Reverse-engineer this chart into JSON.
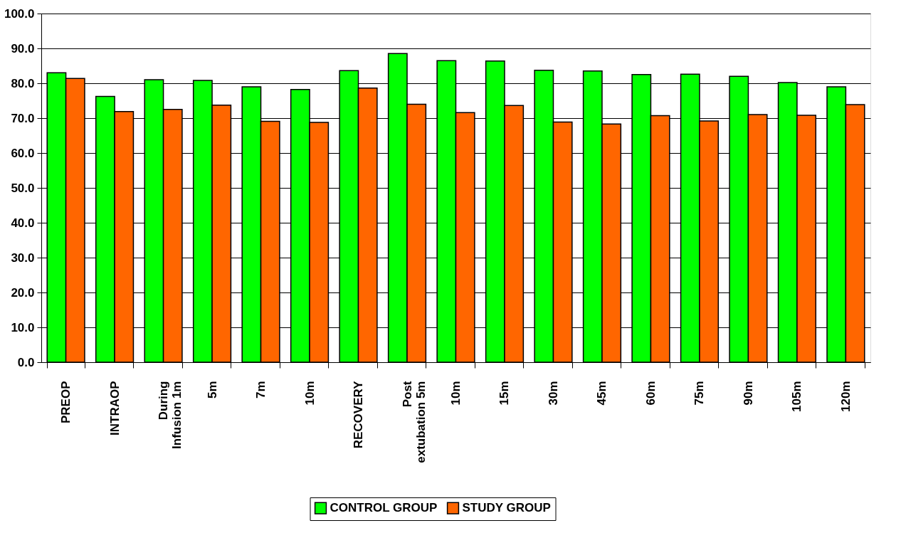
{
  "chart_data": {
    "type": "bar",
    "categories": [
      "PREOP",
      "INTRAOP",
      "During\nInfusion   1m",
      "5m",
      "7m",
      "10m",
      "RECOVERY",
      "Post\nextubation   5m",
      "10m",
      "15m",
      "30m",
      "45m",
      "60m",
      "75m",
      "90m",
      "105m",
      "120m"
    ],
    "series": [
      {
        "name": "CONTROL GROUP",
        "color": "#00ff00",
        "values": [
          83.0,
          76.2,
          81.0,
          80.8,
          79.0,
          78.2,
          83.6,
          88.5,
          86.5,
          86.4,
          83.7,
          83.5,
          82.5,
          82.6,
          82.0,
          80.2,
          79.0
        ]
      },
      {
        "name": "STUDY GROUP",
        "color": "#ff6600",
        "values": [
          81.4,
          71.9,
          72.5,
          73.7,
          69.1,
          68.8,
          78.6,
          74.0,
          71.6,
          73.6,
          68.9,
          68.3,
          70.7,
          69.2,
          71.0,
          70.8,
          73.9
        ]
      }
    ],
    "ylim": [
      0,
      100
    ],
    "yticks": [
      {
        "value": 0,
        "label": "0.0"
      },
      {
        "value": 10,
        "label": "10.0"
      },
      {
        "value": 20,
        "label": "20.0"
      },
      {
        "value": 30,
        "label": "30.0"
      },
      {
        "value": 40,
        "label": "40.0"
      },
      {
        "value": 50,
        "label": "50.0"
      },
      {
        "value": 60,
        "label": "60.0"
      },
      {
        "value": 70,
        "label": "70.0"
      },
      {
        "value": 80,
        "label": "80.0"
      },
      {
        "value": 90,
        "label": "90.0"
      },
      {
        "value": 100,
        "label": "100.0"
      }
    ],
    "grid": "y",
    "legend": "bottom"
  }
}
